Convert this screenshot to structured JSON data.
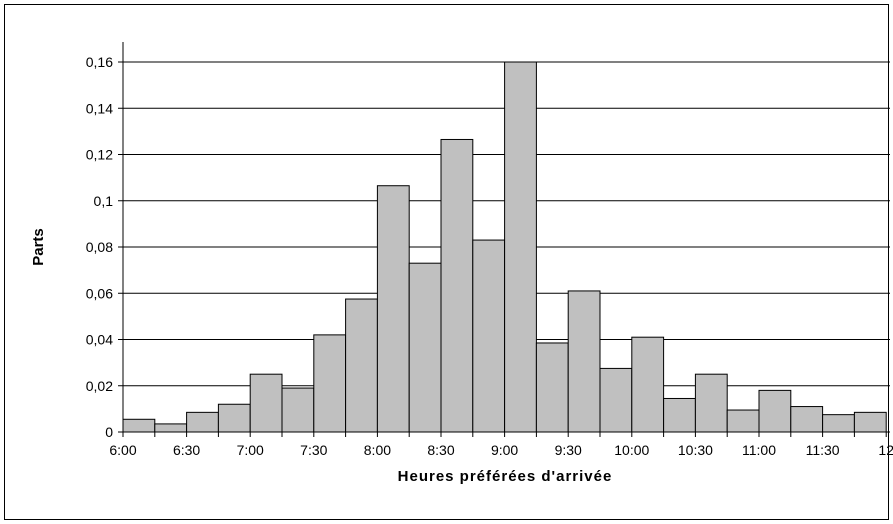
{
  "chart_data": {
    "type": "bar",
    "xlabel": "Heures préférées d'arrivée",
    "ylabel": "Parts",
    "ylim": [
      0,
      0.16
    ],
    "y_ticks": [
      "0",
      "0,02",
      "0,04",
      "0,06",
      "0,08",
      "0,1",
      "0,12",
      "0,14",
      "0,16"
    ],
    "x_tick_labels": [
      "6:00",
      "6:30",
      "7:00",
      "7:30",
      "8:00",
      "8:30",
      "9:00",
      "9:30",
      "10:00",
      "10:30",
      "11:00",
      "11:30",
      "12"
    ],
    "bins_start": "6:00",
    "bin_width_minutes": 15,
    "values": [
      0.0055,
      0.0035,
      0.0085,
      0.012,
      0.025,
      0.019,
      0.042,
      0.0575,
      0.1065,
      0.073,
      0.1265,
      0.083,
      0.16,
      0.0385,
      0.061,
      0.0275,
      0.041,
      0.0145,
      0.025,
      0.0095,
      0.018,
      0.011,
      0.0075,
      0.0085
    ],
    "bar_color": "#c0c0c0",
    "grid": true
  }
}
